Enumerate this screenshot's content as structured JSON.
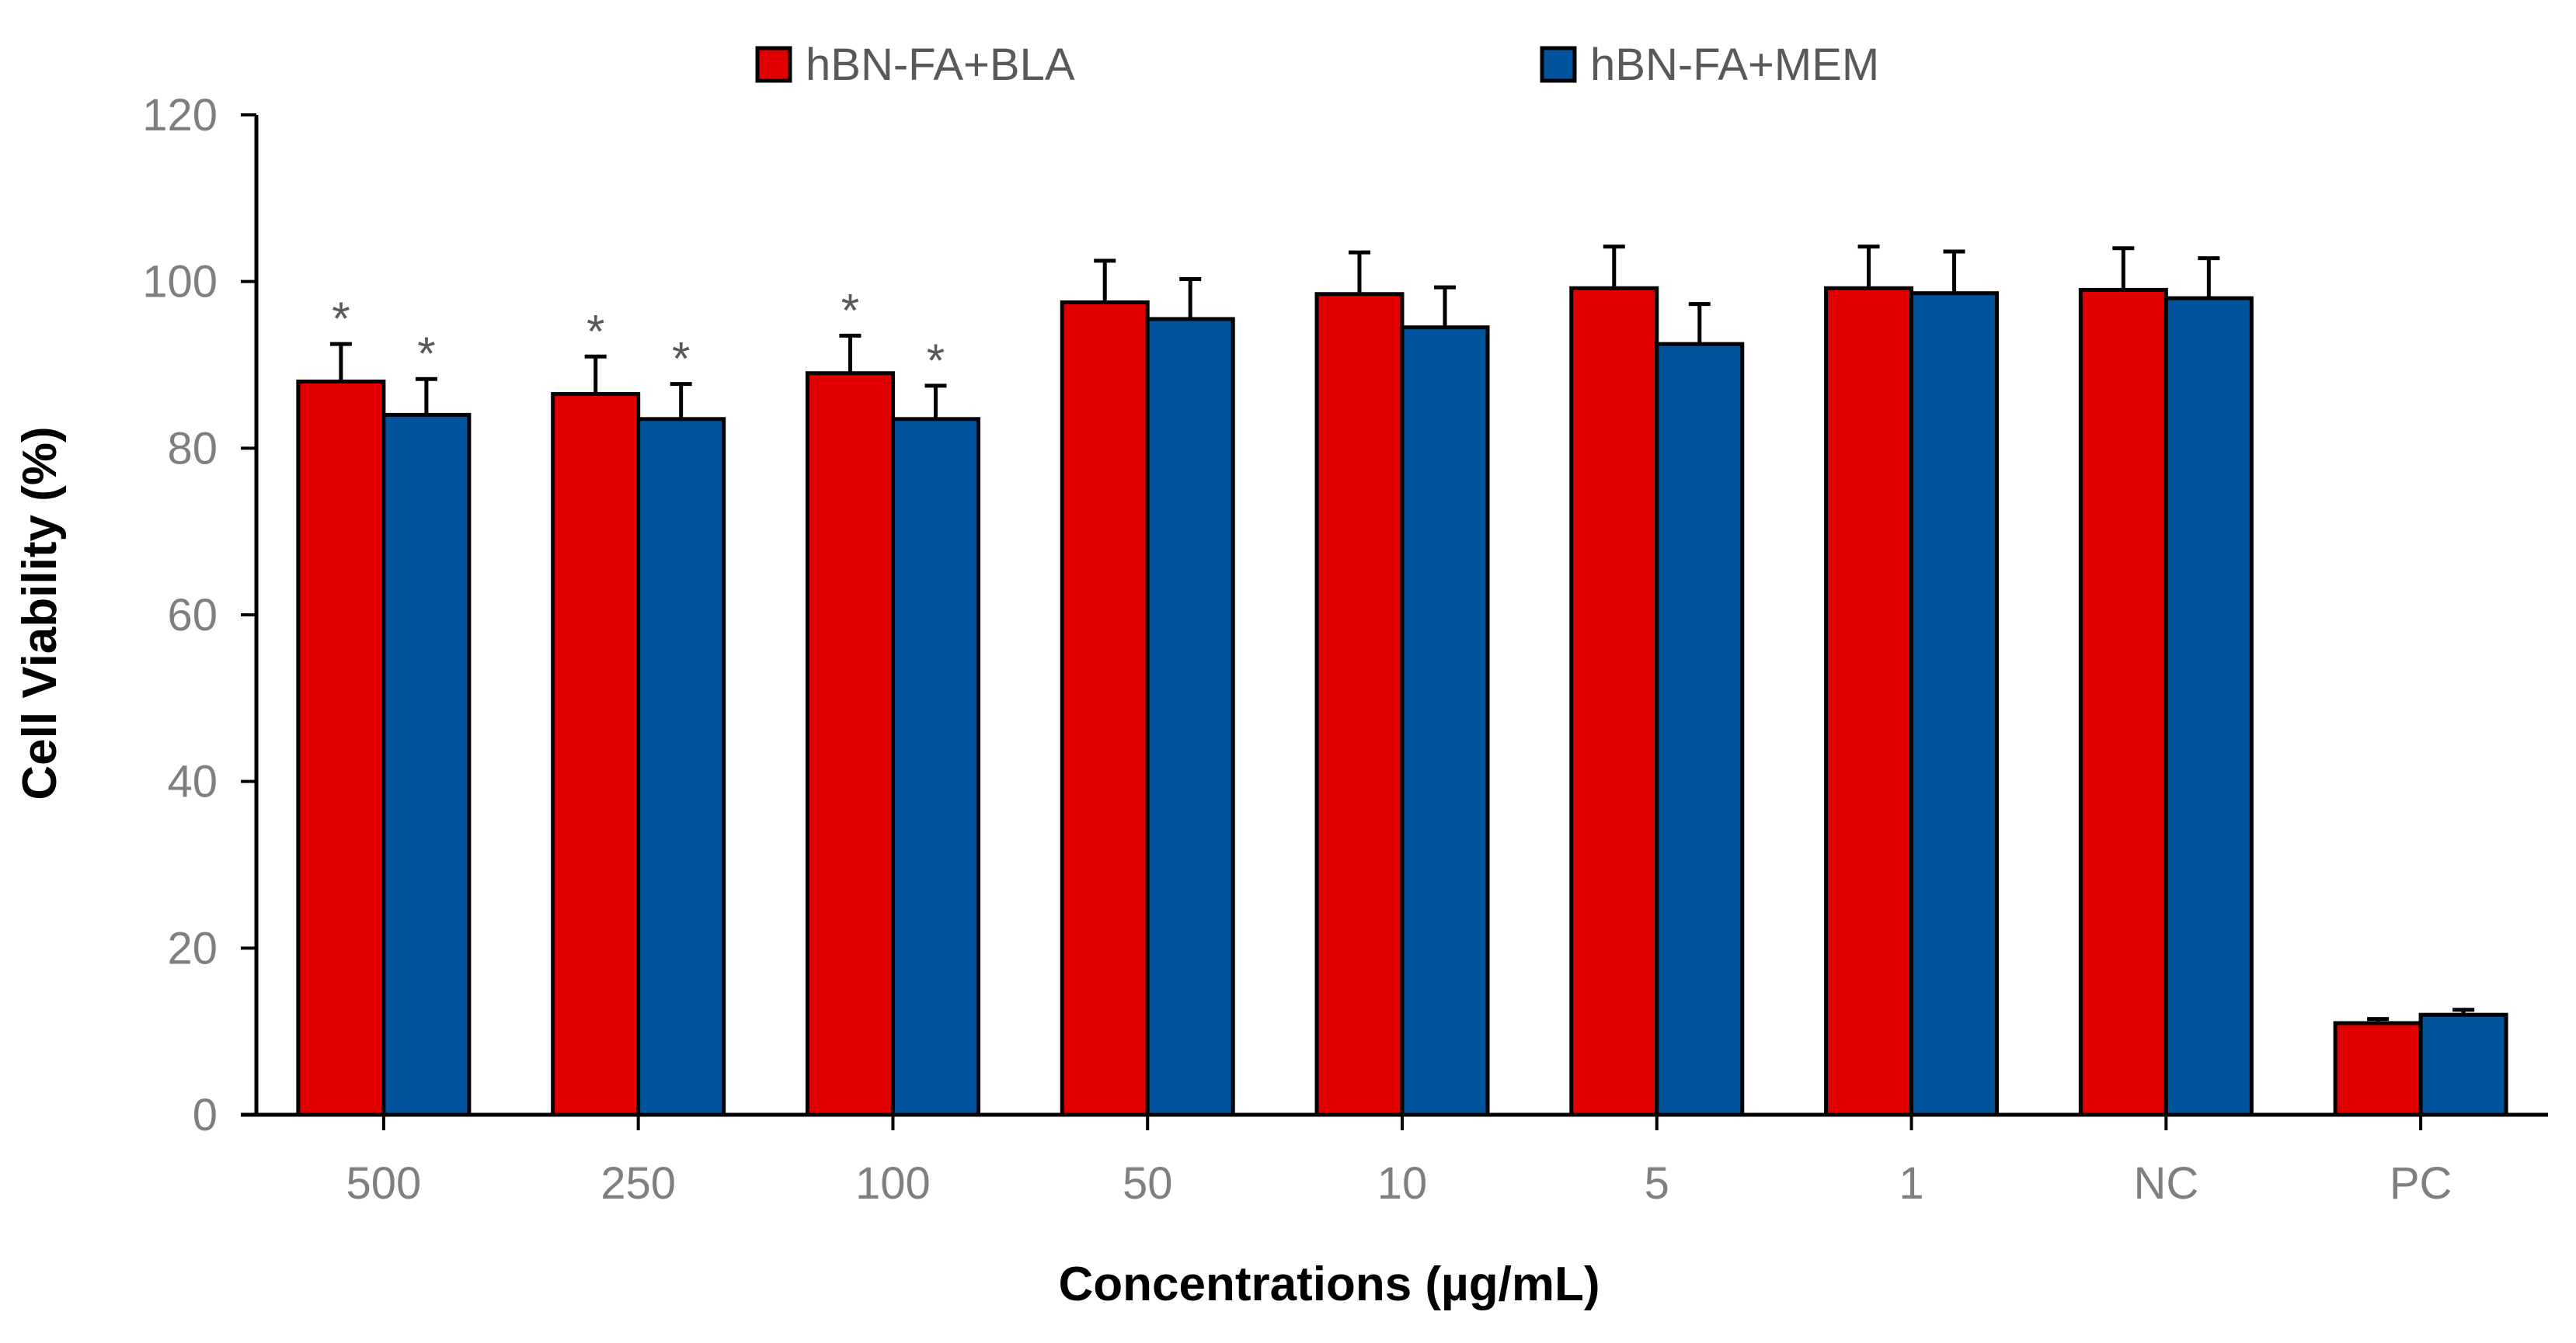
{
  "chart_data": {
    "type": "bar",
    "title": "",
    "xlabel": "Concentrations (µg/mL)",
    "ylabel": "Cell Viability (%)",
    "ylim": [
      0,
      120
    ],
    "yticks": [
      "0",
      "20",
      "40",
      "60",
      "80",
      "100",
      "120"
    ],
    "grid": false,
    "legend_position": "top-center",
    "categories": [
      "500",
      "250",
      "100",
      "50",
      "10",
      "5",
      "1",
      "NC",
      "PC"
    ],
    "series": [
      {
        "name": "hBN-FA+BLA",
        "color": "#e00000",
        "values": [
          88,
          86.5,
          89,
          97.5,
          98.5,
          99.2,
          99.2,
          99,
          11
        ],
        "errors": [
          4.5,
          4.5,
          4.5,
          5,
          5,
          5,
          5,
          5,
          0.5
        ],
        "significance": [
          "*",
          "*",
          "*",
          "",
          "",
          "",
          "",
          "",
          ""
        ]
      },
      {
        "name": "hBN-FA+MEM",
        "color": "#00539c",
        "values": [
          84,
          83.5,
          83.5,
          95.5,
          94.5,
          92.5,
          98.6,
          98,
          12
        ],
        "errors": [
          4.3,
          4.2,
          4,
          4.8,
          4.8,
          4.8,
          5,
          4.8,
          0.6
        ],
        "significance": [
          "*",
          "*",
          "*",
          "",
          "",
          "",
          "",
          "",
          ""
        ]
      }
    ]
  }
}
